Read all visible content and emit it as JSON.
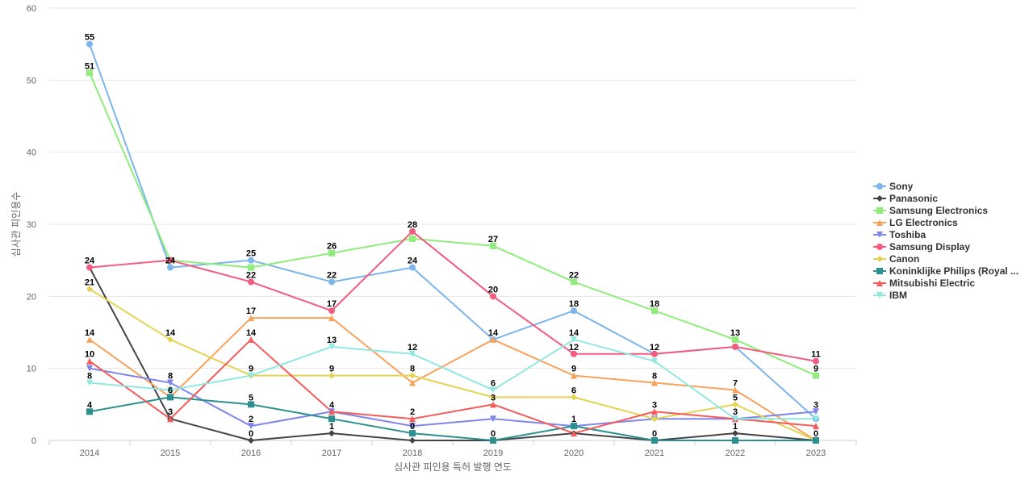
{
  "chart_data": {
    "type": "line",
    "xlabel": "심사관 피인용 특허 발행 연도",
    "ylabel": "심사관 피인용수",
    "x": [
      "2014",
      "2015",
      "2016",
      "2017",
      "2018",
      "2019",
      "2020",
      "2021",
      "2022",
      "2023"
    ],
    "ylim": [
      0,
      60
    ],
    "yticks": [
      0,
      10,
      20,
      30,
      40,
      50,
      60
    ],
    "grid": true,
    "legend_position": "right",
    "series": [
      {
        "name": "Sony",
        "color": "#7cb5ec",
        "marker": "circle",
        "values": [
          55,
          24,
          25,
          22,
          24,
          14,
          18,
          12,
          13,
          3
        ]
      },
      {
        "name": "Panasonic",
        "color": "#434348",
        "marker": "diamond",
        "values": [
          24,
          3,
          0,
          1,
          0,
          0,
          1,
          0,
          1,
          0
        ]
      },
      {
        "name": "Samsung Electronics",
        "color": "#90ed7d",
        "marker": "square",
        "values": [
          51,
          25,
          24,
          26,
          28,
          27,
          22,
          18,
          14,
          9
        ]
      },
      {
        "name": "LG Electronics",
        "color": "#f7a35c",
        "marker": "triangle",
        "values": [
          14,
          6,
          17,
          17,
          8,
          14,
          9,
          8,
          7,
          0
        ]
      },
      {
        "name": "Toshiba",
        "color": "#8085e9",
        "marker": "triangle-down",
        "values": [
          10,
          8,
          2,
          4,
          2,
          3,
          2,
          3,
          3,
          4
        ]
      },
      {
        "name": "Samsung Display",
        "color": "#f15c80",
        "marker": "circle",
        "values": [
          24,
          25,
          22,
          18,
          29,
          20,
          12,
          12,
          13,
          11
        ]
      },
      {
        "name": "Canon",
        "color": "#e4d354",
        "marker": "diamond",
        "values": [
          21,
          14,
          9,
          9,
          9,
          6,
          6,
          3,
          5,
          0
        ]
      },
      {
        "name": "Koninklijke Philips (Royal ...",
        "color": "#2b908f",
        "marker": "square",
        "values": [
          4,
          6,
          5,
          3,
          1,
          0,
          2,
          0,
          0,
          0
        ]
      },
      {
        "name": "Mitsubishi Electric",
        "color": "#f45b5b",
        "marker": "triangle",
        "values": [
          11,
          3,
          14,
          4,
          3,
          5,
          1,
          4,
          3,
          2
        ]
      },
      {
        "name": "IBM",
        "color": "#91e8e1",
        "marker": "triangle-down",
        "values": [
          8,
          7,
          9,
          13,
          12,
          7,
          14,
          11,
          3,
          3
        ]
      }
    ],
    "data_labels": [
      {
        "x": "2014",
        "y": 55,
        "text": "55"
      },
      {
        "x": "2014",
        "y": 51,
        "text": "51"
      },
      {
        "x": "2014",
        "y": 24,
        "text": "24"
      },
      {
        "x": "2014",
        "y": 21,
        "text": "21"
      },
      {
        "x": "2014",
        "y": 14,
        "text": "14"
      },
      {
        "x": "2014",
        "y": 11,
        "text": "10"
      },
      {
        "x": "2014",
        "y": 8,
        "text": "8"
      },
      {
        "x": "2014",
        "y": 4,
        "text": "4"
      },
      {
        "x": "2015",
        "y": 24,
        "text": "24"
      },
      {
        "x": "2015",
        "y": 14,
        "text": "14"
      },
      {
        "x": "2015",
        "y": 8,
        "text": "8"
      },
      {
        "x": "2015",
        "y": 6,
        "text": "6"
      },
      {
        "x": "2015",
        "y": 3,
        "text": "3"
      },
      {
        "x": "2016",
        "y": 25,
        "text": "25"
      },
      {
        "x": "2016",
        "y": 22,
        "text": "22"
      },
      {
        "x": "2016",
        "y": 17,
        "text": "17"
      },
      {
        "x": "2016",
        "y": 14,
        "text": "14"
      },
      {
        "x": "2016",
        "y": 9,
        "text": "9"
      },
      {
        "x": "2016",
        "y": 5,
        "text": "5"
      },
      {
        "x": "2016",
        "y": 2,
        "text": "2"
      },
      {
        "x": "2016",
        "y": 0,
        "text": "0"
      },
      {
        "x": "2017",
        "y": 26,
        "text": "26"
      },
      {
        "x": "2017",
        "y": 22,
        "text": "22"
      },
      {
        "x": "2017",
        "y": 18,
        "text": "17"
      },
      {
        "x": "2017",
        "y": 13,
        "text": "13"
      },
      {
        "x": "2017",
        "y": 9,
        "text": "9"
      },
      {
        "x": "2017",
        "y": 4,
        "text": "4"
      },
      {
        "x": "2017",
        "y": 1,
        "text": "1"
      },
      {
        "x": "2018",
        "y": 29,
        "text": "28"
      },
      {
        "x": "2018",
        "y": 24,
        "text": "24"
      },
      {
        "x": "2018",
        "y": 12,
        "text": "12"
      },
      {
        "x": "2018",
        "y": 9,
        "text": "8"
      },
      {
        "x": "2018",
        "y": 3,
        "text": "2"
      },
      {
        "x": "2018",
        "y": 1,
        "text": "0"
      },
      {
        "x": "2019",
        "y": 27,
        "text": "27"
      },
      {
        "x": "2019",
        "y": 20,
        "text": "20"
      },
      {
        "x": "2019",
        "y": 14,
        "text": "14"
      },
      {
        "x": "2019",
        "y": 7,
        "text": "6"
      },
      {
        "x": "2019",
        "y": 5,
        "text": "3"
      },
      {
        "x": "2019",
        "y": 0,
        "text": "0"
      },
      {
        "x": "2020",
        "y": 22,
        "text": "22"
      },
      {
        "x": "2020",
        "y": 18,
        "text": "18"
      },
      {
        "x": "2020",
        "y": 14,
        "text": "14"
      },
      {
        "x": "2020",
        "y": 12,
        "text": "12"
      },
      {
        "x": "2020",
        "y": 9,
        "text": "9"
      },
      {
        "x": "2020",
        "y": 6,
        "text": "6"
      },
      {
        "x": "2020",
        "y": 2,
        "text": "1"
      },
      {
        "x": "2021",
        "y": 18,
        "text": "18"
      },
      {
        "x": "2021",
        "y": 12,
        "text": "12"
      },
      {
        "x": "2021",
        "y": 8,
        "text": "8"
      },
      {
        "x": "2021",
        "y": 4,
        "text": "3"
      },
      {
        "x": "2021",
        "y": 0,
        "text": "0"
      },
      {
        "x": "2022",
        "y": 14,
        "text": "13"
      },
      {
        "x": "2022",
        "y": 7,
        "text": "7"
      },
      {
        "x": "2022",
        "y": 5,
        "text": "5"
      },
      {
        "x": "2022",
        "y": 3,
        "text": "3"
      },
      {
        "x": "2022",
        "y": 1,
        "text": "1"
      },
      {
        "x": "2023",
        "y": 11,
        "text": "11"
      },
      {
        "x": "2023",
        "y": 9,
        "text": "9"
      },
      {
        "x": "2023",
        "y": 4,
        "text": "3"
      },
      {
        "x": "2023",
        "y": 0,
        "text": "0"
      }
    ]
  }
}
